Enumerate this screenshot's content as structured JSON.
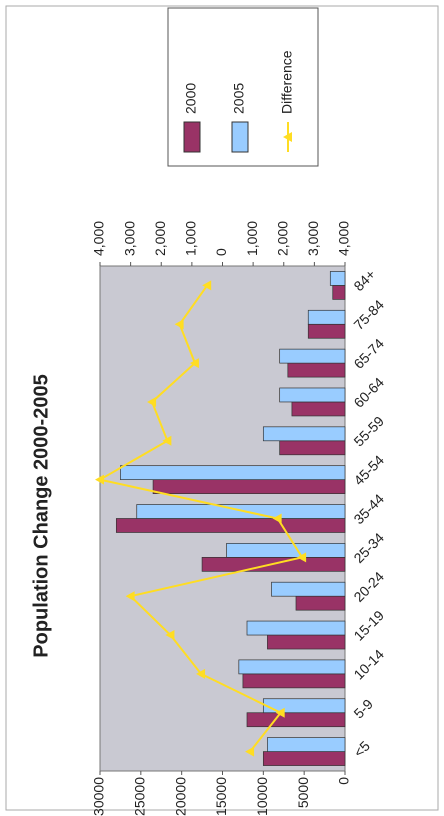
{
  "chart_data": {
    "type": "bar",
    "title": "Population Change 2000-2005",
    "categories": [
      "<5",
      "5-9",
      "10-14",
      "15-19",
      "20-24",
      "25-34",
      "35-44",
      "45-54",
      "55-59",
      "60-64",
      "65-74",
      "75-84",
      "84+"
    ],
    "series": [
      {
        "name": "2000",
        "color": "#993366",
        "values": [
          10000,
          12000,
          12500,
          9500,
          6000,
          17500,
          28000,
          23500,
          8000,
          6500,
          7000,
          4500,
          1500
        ]
      },
      {
        "name": "2005",
        "color": "#99ccff",
        "values": [
          9500,
          10000,
          13000,
          12000,
          9000,
          14500,
          25500,
          27500,
          10000,
          8000,
          8000,
          4500,
          1800
        ]
      },
      {
        "name": "Difference",
        "color": "#ffdd22",
        "type": "line",
        "axis": "y2",
        "values": [
          -900,
          -1900,
          700,
          1700,
          3000,
          -2600,
          -1800,
          4000,
          1800,
          2300,
          900,
          1400,
          500
        ]
      }
    ],
    "ylim": [
      0,
      30000
    ],
    "yticks": [
      0,
      5000,
      10000,
      15000,
      20000,
      25000,
      30000
    ],
    "y2lim": [
      -4000,
      4000
    ],
    "y2ticks": [
      {
        "value": -4000,
        "label": "4,000"
      },
      {
        "value": -3000,
        "label": "3,000"
      },
      {
        "value": -2000,
        "label": "2,000"
      },
      {
        "value": -1000,
        "label": "1,000"
      },
      0,
      {
        "value": 1000,
        "label": "1,000"
      },
      {
        "value": 2000,
        "label": "2,000"
      },
      {
        "value": 3000,
        "label": "3,000"
      },
      {
        "value": 4000,
        "label": "4,000"
      }
    ],
    "y2_negative_tick_color": "#e02828",
    "plot_background": "#c9c9d2",
    "legend": "right"
  }
}
